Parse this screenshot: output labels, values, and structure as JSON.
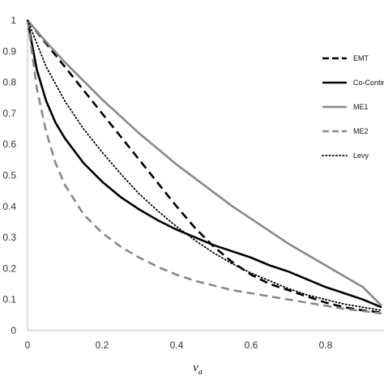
{
  "chart_data": {
    "type": "line",
    "xlabel": "v",
    "xlabel_subscript": "a",
    "ylabel": "",
    "xlim": [
      0,
      0.95
    ],
    "ylim": [
      0,
      1
    ],
    "x_ticks": [
      "0",
      "0.2",
      "0.4",
      "0.6",
      "0.8"
    ],
    "y_ticks": [
      "0",
      "0.1",
      "0.2",
      "0.3",
      "0.4",
      "0.5",
      "0.6",
      "0.7",
      "0.8",
      "0.9",
      "1"
    ],
    "grid": false,
    "legend_position": "right",
    "series": [
      {
        "name": "EMT",
        "color": "#000000",
        "style": "dashed",
        "x": [
          0,
          0.05,
          0.1,
          0.15,
          0.2,
          0.25,
          0.3,
          0.35,
          0.4,
          0.45,
          0.5,
          0.55,
          0.6,
          0.65,
          0.7,
          0.75,
          0.8,
          0.85,
          0.9,
          0.95
        ],
        "y": [
          1.0,
          0.925,
          0.85,
          0.775,
          0.7,
          0.625,
          0.55,
          0.475,
          0.4,
          0.33,
          0.27,
          0.22,
          0.18,
          0.15,
          0.13,
          0.11,
          0.09,
          0.075,
          0.065,
          0.058
        ]
      },
      {
        "name": "Co-Contin",
        "color": "#000000",
        "style": "solid",
        "x": [
          0,
          0.025,
          0.05,
          0.075,
          0.1,
          0.15,
          0.2,
          0.25,
          0.3,
          0.35,
          0.4,
          0.45,
          0.5,
          0.55,
          0.6,
          0.65,
          0.7,
          0.75,
          0.8,
          0.85,
          0.9,
          0.95
        ],
        "y": [
          1.0,
          0.84,
          0.74,
          0.67,
          0.62,
          0.54,
          0.48,
          0.43,
          0.39,
          0.355,
          0.325,
          0.3,
          0.275,
          0.255,
          0.235,
          0.21,
          0.19,
          0.165,
          0.14,
          0.12,
          0.1,
          0.075
        ]
      },
      {
        "name": "ME1",
        "color": "#888888",
        "style": "solid",
        "x": [
          0,
          0.05,
          0.1,
          0.15,
          0.2,
          0.25,
          0.3,
          0.35,
          0.4,
          0.45,
          0.5,
          0.55,
          0.6,
          0.65,
          0.7,
          0.75,
          0.8,
          0.85,
          0.9,
          0.95
        ],
        "y": [
          1.0,
          0.93,
          0.865,
          0.805,
          0.745,
          0.69,
          0.635,
          0.585,
          0.535,
          0.49,
          0.445,
          0.4,
          0.36,
          0.32,
          0.28,
          0.245,
          0.21,
          0.175,
          0.14,
          0.08
        ]
      },
      {
        "name": "ME2",
        "color": "#888888",
        "style": "dashed",
        "x": [
          0,
          0.025,
          0.05,
          0.075,
          0.1,
          0.15,
          0.2,
          0.25,
          0.3,
          0.35,
          0.4,
          0.45,
          0.5,
          0.55,
          0.6,
          0.65,
          0.7,
          0.75,
          0.8,
          0.85,
          0.9,
          0.95
        ],
        "y": [
          1.0,
          0.78,
          0.64,
          0.54,
          0.47,
          0.375,
          0.315,
          0.27,
          0.235,
          0.205,
          0.18,
          0.16,
          0.145,
          0.13,
          0.12,
          0.11,
          0.1,
          0.09,
          0.08,
          0.07,
          0.063,
          0.055
        ]
      },
      {
        "name": "Levy",
        "color": "#000000",
        "style": "dotted",
        "x": [
          0,
          0.05,
          0.1,
          0.15,
          0.2,
          0.25,
          0.3,
          0.35,
          0.4,
          0.45,
          0.5,
          0.55,
          0.6,
          0.65,
          0.7,
          0.75,
          0.8,
          0.85,
          0.9,
          0.95
        ],
        "y": [
          1.0,
          0.85,
          0.74,
          0.65,
          0.575,
          0.505,
          0.44,
          0.385,
          0.335,
          0.29,
          0.25,
          0.215,
          0.185,
          0.16,
          0.135,
          0.115,
          0.1,
          0.085,
          0.075,
          0.065
        ]
      }
    ]
  }
}
